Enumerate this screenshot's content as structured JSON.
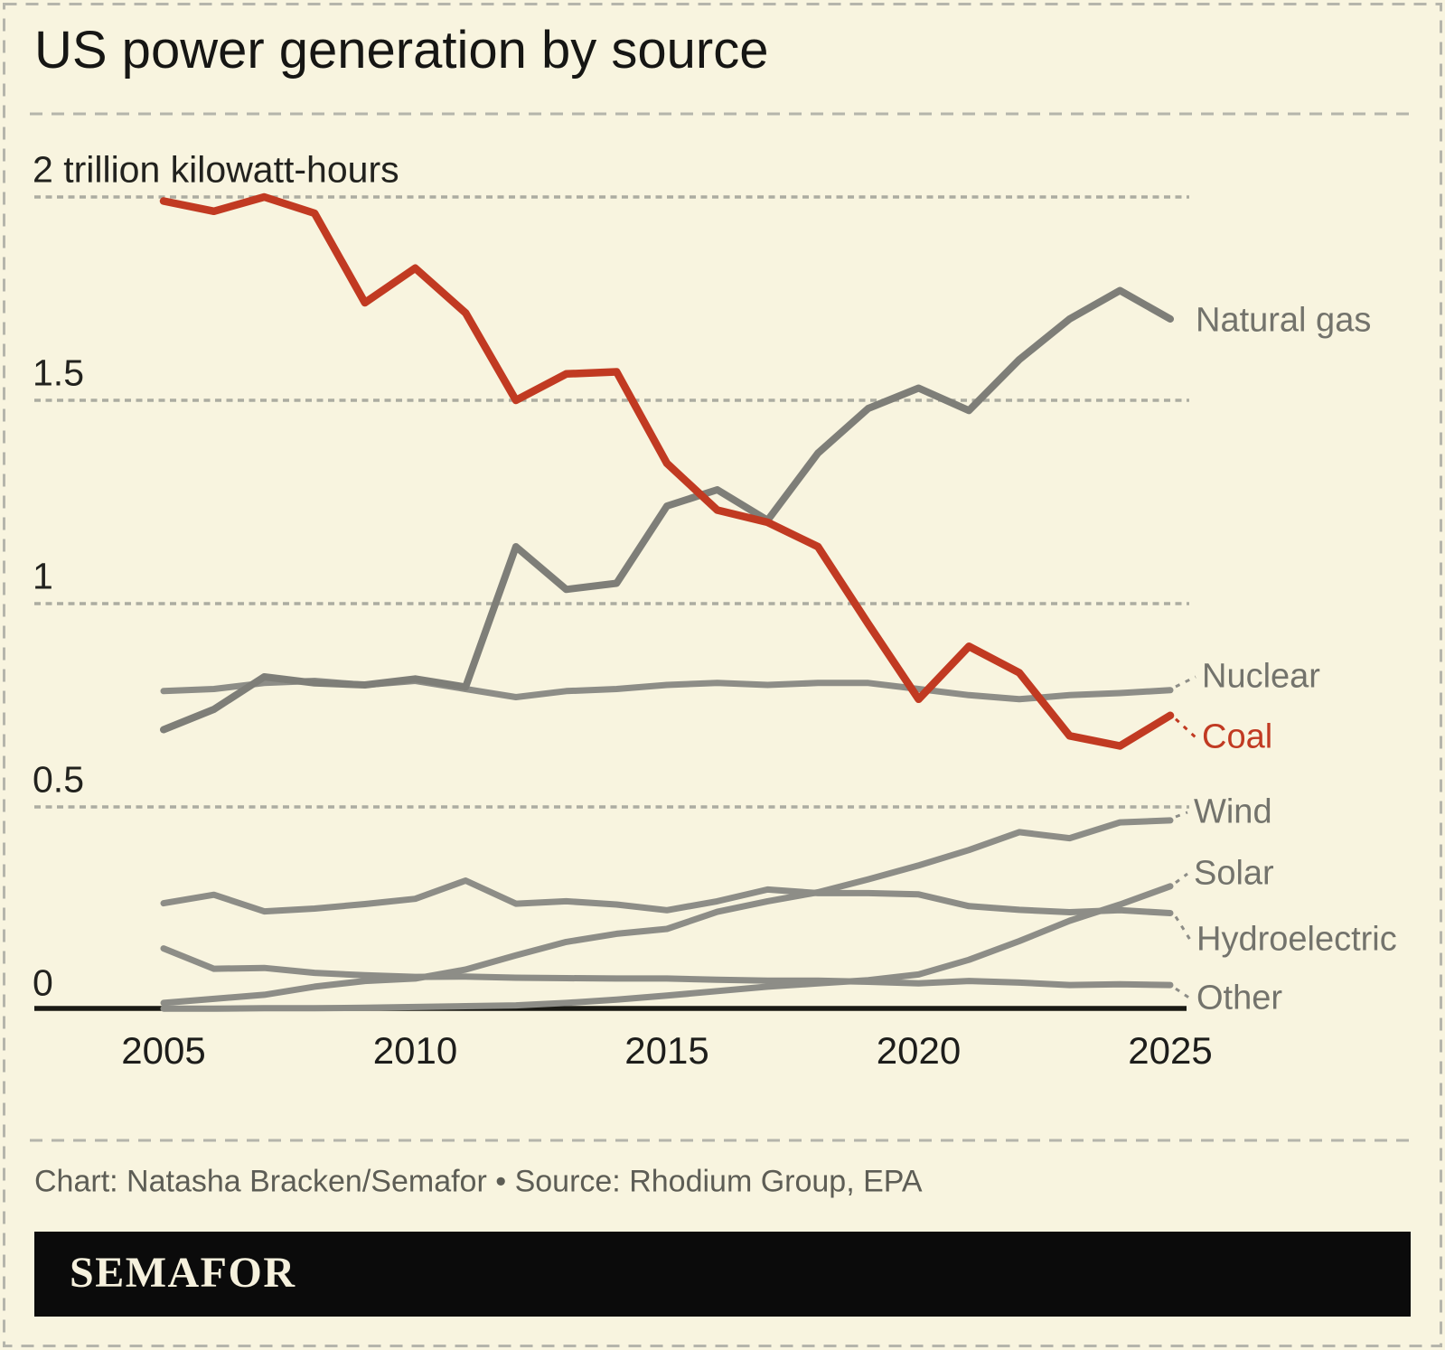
{
  "title": "US power generation by source",
  "footer": {
    "credit": "Chart: Natasha Bracken/Semafor • Source: Rhodium Group, EPA"
  },
  "logo": {
    "text": "SEMAFOR"
  },
  "colors": {
    "background": "#f8f4df",
    "coal_red": "#c13a22",
    "series_gray": "#8d8d87",
    "natural_gas_gray": "#7e7e78",
    "label_gray": "#73736c",
    "grid_dash": "#acaca1",
    "axis_black": "#1a1a14"
  },
  "chart_data": {
    "type": "line",
    "title": "US power generation by source",
    "unit_label": "2 trillion kilowatt-hours",
    "xlabel": "",
    "ylabel": "trillion kilowatt-hours",
    "ylim": [
      0,
      2.05
    ],
    "grid": "horizontal dashed lines at 0.5 intervals",
    "legend_position": "right-inline-labels",
    "x": [
      2005,
      2006,
      2007,
      2008,
      2009,
      2010,
      2011,
      2012,
      2013,
      2014,
      2015,
      2016,
      2017,
      2018,
      2019,
      2020,
      2021,
      2022,
      2023,
      2024,
      2025
    ],
    "x_ticks": [
      2005,
      2010,
      2015,
      2020,
      2025
    ],
    "y_ticks": [
      {
        "value": 2.0,
        "label": "2 trillion kilowatt-hours"
      },
      {
        "value": 1.5,
        "label": "1.5"
      },
      {
        "value": 1.0,
        "label": "1"
      },
      {
        "value": 0.5,
        "label": "0.5"
      },
      {
        "value": 0.0,
        "label": "0"
      }
    ],
    "series": [
      {
        "name": "Coal",
        "color": "#c13a22",
        "values": [
          1.99,
          1.965,
          2.0,
          1.96,
          1.74,
          1.825,
          1.715,
          1.5,
          1.565,
          1.57,
          1.345,
          1.23,
          1.2,
          1.14,
          0.95,
          0.765,
          0.895,
          0.83,
          0.675,
          0.65,
          0.725
        ]
      },
      {
        "name": "Natural gas",
        "color": "#7e7e78",
        "values": [
          0.69,
          0.74,
          0.82,
          0.805,
          0.8,
          0.815,
          0.795,
          1.14,
          1.035,
          1.05,
          1.24,
          1.28,
          1.205,
          1.37,
          1.48,
          1.53,
          1.475,
          1.6,
          1.7,
          1.77,
          1.7
        ]
      },
      {
        "name": "Nuclear",
        "color": "#8d8d87",
        "values": [
          0.785,
          0.79,
          0.805,
          0.81,
          0.8,
          0.81,
          0.79,
          0.77,
          0.785,
          0.79,
          0.8,
          0.805,
          0.8,
          0.805,
          0.805,
          0.79,
          0.775,
          0.765,
          0.775,
          0.78,
          0.787
        ]
      },
      {
        "name": "Wind",
        "color": "#8d8d87",
        "values": [
          0.018,
          0.028,
          0.038,
          0.058,
          0.072,
          0.078,
          0.1,
          0.135,
          0.168,
          0.188,
          0.2,
          0.242,
          0.268,
          0.29,
          0.322,
          0.356,
          0.394,
          0.438,
          0.423,
          0.462,
          0.467
        ]
      },
      {
        "name": "Solar",
        "color": "#8d8d87",
        "values": [
          0.004,
          0.004,
          0.005,
          0.005,
          0.006,
          0.008,
          0.01,
          0.012,
          0.018,
          0.026,
          0.036,
          0.047,
          0.058,
          0.066,
          0.074,
          0.088,
          0.124,
          0.17,
          0.22,
          0.26,
          0.305
        ]
      },
      {
        "name": "Hydroelectric",
        "color": "#8d8d87",
        "values": [
          0.263,
          0.284,
          0.243,
          0.25,
          0.261,
          0.274,
          0.319,
          0.262,
          0.268,
          0.26,
          0.246,
          0.268,
          0.297,
          0.288,
          0.288,
          0.285,
          0.256,
          0.247,
          0.241,
          0.246,
          0.239
        ]
      },
      {
        "name": "Other",
        "color": "#8d8d87",
        "values": [
          0.152,
          0.102,
          0.104,
          0.092,
          0.086,
          0.082,
          0.083,
          0.08,
          0.079,
          0.078,
          0.078,
          0.075,
          0.073,
          0.073,
          0.07,
          0.066,
          0.072,
          0.068,
          0.062,
          0.064,
          0.062
        ]
      }
    ]
  }
}
